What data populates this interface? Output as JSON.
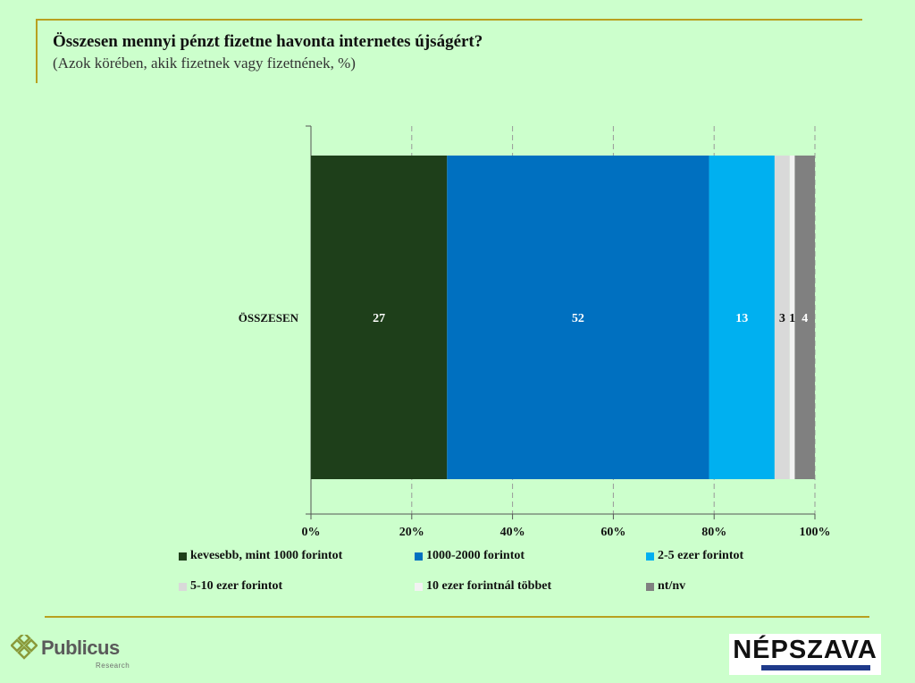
{
  "header": {
    "title": "Összesen mennyi pénzt fizetne havonta internetes újságért?",
    "subtitle": "(Azok körében, akik fizetnek vagy fizetnének, %)"
  },
  "colors": {
    "background": "#ccffcc",
    "rule": "#b8a020",
    "grid": "#999999"
  },
  "chart_data": {
    "type": "bar",
    "orientation": "horizontal",
    "stacked": "percent",
    "categories": [
      "ÖSSZESEN"
    ],
    "series": [
      {
        "name": "kevesebb, mint 1000 forintot",
        "values": [
          27
        ],
        "color": "#1e3f1a",
        "label_color": "#ffffff"
      },
      {
        "name": "1000-2000 forintot",
        "values": [
          52
        ],
        "color": "#0070c0",
        "label_color": "#ffffff"
      },
      {
        "name": "2-5 ezer forintot",
        "values": [
          13
        ],
        "color": "#00b0f0",
        "label_color": "#ffffff"
      },
      {
        "name": "5-10 ezer forintot",
        "values": [
          3
        ],
        "color": "#d9d9d9",
        "label_color": "#111111"
      },
      {
        "name": "10 ezer forintnál többet",
        "values": [
          1
        ],
        "color": "#f2f2f2",
        "label_color": "#111111"
      },
      {
        "name": "nt/nv",
        "values": [
          4
        ],
        "color": "#808080",
        "label_color": "#ffffff"
      }
    ],
    "xlim": [
      0,
      100
    ],
    "xticks": [
      "0%",
      "20%",
      "40%",
      "60%",
      "80%",
      "100%"
    ],
    "grid": "vertical dashed",
    "legend_position": "bottom"
  },
  "logos": {
    "publicus": {
      "name": "Publicus",
      "sub": "Research",
      "mark_color": "#8a9a3a"
    },
    "nepszava": {
      "name": "NÉPSZAVA"
    }
  }
}
